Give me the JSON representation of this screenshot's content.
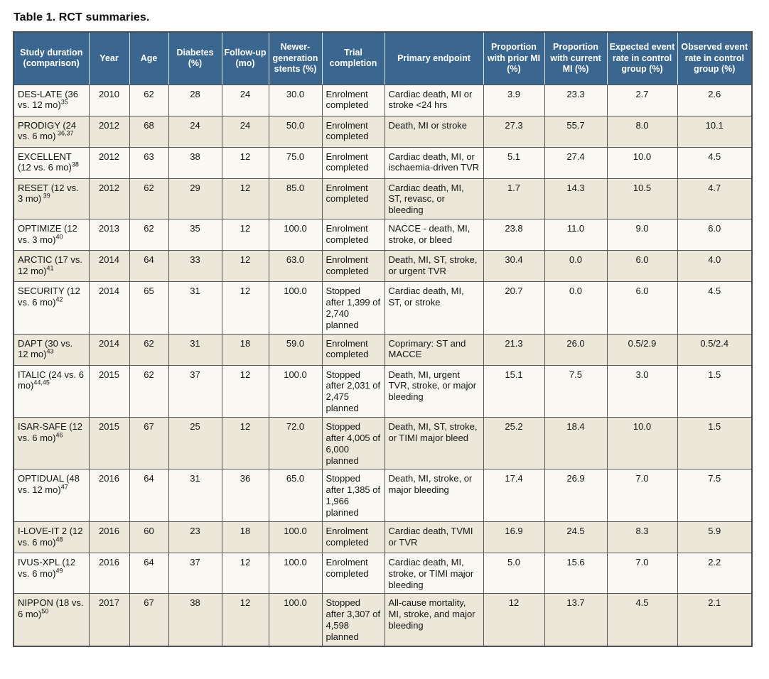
{
  "title": "Table 1. RCT summaries.",
  "colors": {
    "header_bg": "#3a668f",
    "header_text": "#ffffff",
    "row_light": "#faf9f4",
    "row_cream": "#ece8d9",
    "border": "#55565a"
  },
  "table": {
    "columns": [
      "Study duration (comparison)",
      "Year",
      "Age",
      "Diabetes (%)",
      "Follow-up (mo)",
      "Newer-genera­tion stents (%)",
      "Trial completion",
      "Primary endpoint",
      "Proportion with prior MI (%)",
      "Proportion with current MI (%)",
      "Expected event rate in control group (%)",
      "Observed event rate in control group (%)"
    ],
    "rows": [
      {
        "study": "DES-LATE (36 vs. 12 mo)",
        "ref": "35",
        "year": "2010",
        "age": "62",
        "diabetes": "28",
        "followup": "24",
        "stents": "30.0",
        "completion": "Enrolment completed",
        "endpoint": "Cardiac death, MI or stroke <24 hrs",
        "prior_mi": "3.9",
        "current_mi": "23.3",
        "expected": "2.7",
        "observed": "2.6"
      },
      {
        "study": "PRODIGY (24 vs. 6 mo)",
        "ref": " 36,37",
        "year": "2012",
        "age": "68",
        "diabetes": "24",
        "followup": "24",
        "stents": "50.0",
        "completion": "Enrolment completed",
        "endpoint": "Death, MI or stroke",
        "prior_mi": "27.3",
        "current_mi": "55.7",
        "expected": "8.0",
        "observed": "10.1"
      },
      {
        "study": "EXCELLENT (12 vs. 6 mo)",
        "ref": "38",
        "year": "2012",
        "age": "63",
        "diabetes": "38",
        "followup": "12",
        "stents": "75.0",
        "completion": "Enrolment completed",
        "endpoint": "Cardiac death, MI, or ischaemia-driven TVR",
        "prior_mi": "5.1",
        "current_mi": "27.4",
        "expected": "10.0",
        "observed": "4.5"
      },
      {
        "study": "RESET (12 vs. 3 mo)",
        "ref": " 39",
        "year": "2012",
        "age": "62",
        "diabetes": "29",
        "followup": "12",
        "stents": "85.0",
        "completion": "Enrolment completed",
        "endpoint": "Cardiac death, MI, ST, revasc, or bleeding",
        "prior_mi": "1.7",
        "current_mi": "14.3",
        "expected": "10.5",
        "observed": "4.7"
      },
      {
        "study": "OPTIMIZE (12 vs. 3 mo)",
        "ref": "40",
        "year": "2013",
        "age": "62",
        "diabetes": "35",
        "followup": "12",
        "stents": "100.0",
        "completion": "Enrolment completed",
        "endpoint": "NACCE - death, MI, stroke, or bleed",
        "prior_mi": "23.8",
        "current_mi": "11.0",
        "expected": "9.0",
        "observed": "6.0"
      },
      {
        "study": "ARCTIC (17 vs. 12 mo)",
        "ref": "41",
        "year": "2014",
        "age": "64",
        "diabetes": "33",
        "followup": "12",
        "stents": "63.0",
        "completion": "Enrolment completed",
        "endpoint": "Death, MI, ST, stroke, or urgent TVR",
        "prior_mi": "30.4",
        "current_mi": "0.0",
        "expected": "6.0",
        "observed": "4.0"
      },
      {
        "study": "SECURITY (12 vs. 6 mo)",
        "ref": "42",
        "year": "2014",
        "age": "65",
        "diabetes": "31",
        "followup": "12",
        "stents": "100.0",
        "completion": "Stopped after 1,399 of 2,740 planned",
        "endpoint": "Cardiac death, MI, ST, or stroke",
        "prior_mi": "20.7",
        "current_mi": "0.0",
        "expected": "6.0",
        "observed": "4.5"
      },
      {
        "study": "DAPT (30 vs. 12 mo)",
        "ref": "43",
        "year": "2014",
        "age": "62",
        "diabetes": "31",
        "followup": "18",
        "stents": "59.0",
        "completion": "Enrolment completed",
        "endpoint": "Coprimary: ST and MACCE",
        "prior_mi": "21.3",
        "current_mi": "26.0",
        "expected": "0.5/2.9",
        "observed": "0.5/2.4"
      },
      {
        "study": "ITALIC (24 vs. 6 mo)",
        "ref": "44,45",
        "year": "2015",
        "age": "62",
        "diabetes": "37",
        "followup": "12",
        "stents": "100.0",
        "completion": "Stopped after 2,031 of 2,475 planned",
        "endpoint": "Death, MI, urgent TVR, stroke, or major bleeding",
        "prior_mi": "15.1",
        "current_mi": "7.5",
        "expected": "3.0",
        "observed": "1.5"
      },
      {
        "study": "ISAR-SAFE (12 vs. 6 mo)",
        "ref": "46",
        "year": "2015",
        "age": "67",
        "diabetes": "25",
        "followup": "12",
        "stents": "72.0",
        "completion": "Stopped after 4,005 of 6,000 planned",
        "endpoint": "Death, MI, ST, stroke, or TIMI major bleed",
        "prior_mi": "25.2",
        "current_mi": "18.4",
        "expected": "10.0",
        "observed": "1.5"
      },
      {
        "study": "OPTIDUAL (48 vs. 12 mo)",
        "ref": "47",
        "year": "2016",
        "age": "64",
        "diabetes": "31",
        "followup": "36",
        "stents": "65.0",
        "completion": "Stopped after 1,385 of 1,966 planned",
        "endpoint": "Death, MI, stroke, or major bleeding",
        "prior_mi": "17.4",
        "current_mi": "26.9",
        "expected": "7.0",
        "observed": "7.5"
      },
      {
        "study": "I-LOVE-IT 2 (12 vs. 6 mo)",
        "ref": "48",
        "year": "2016",
        "age": "60",
        "diabetes": "23",
        "followup": "18",
        "stents": "100.0",
        "completion": "Enrolment completed",
        "endpoint": "Cardiac death, TVMI or TVR",
        "prior_mi": "16.9",
        "current_mi": "24.5",
        "expected": "8.3",
        "observed": "5.9"
      },
      {
        "study": "IVUS-XPL (12 vs. 6 mo)",
        "ref": "49",
        "year": "2016",
        "age": "64",
        "diabetes": "37",
        "followup": "12",
        "stents": "100.0",
        "completion": "Enrolment completed",
        "endpoint": "Cardiac death, MI, stroke, or TIMI major bleeding",
        "prior_mi": "5.0",
        "current_mi": "15.6",
        "expected": "7.0",
        "observed": "2.2"
      },
      {
        "study": "NIPPON (18 vs. 6 mo)",
        "ref": "50",
        "year": "2017",
        "age": "67",
        "diabetes": "38",
        "followup": "12",
        "stents": "100.0",
        "completion": "Stopped after 3,307 of 4,598 planned",
        "endpoint": "All-cause mortality, MI, stroke, and major bleeding",
        "prior_mi": "12",
        "current_mi": "13.7",
        "expected": "4.5",
        "observed": "2.1"
      }
    ]
  }
}
